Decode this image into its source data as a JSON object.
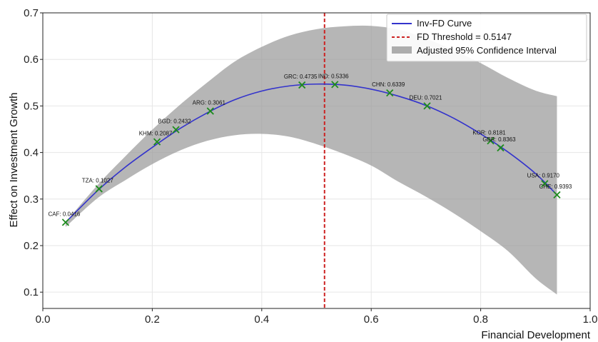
{
  "chart_data": {
    "type": "line",
    "xlabel": "Financial Development",
    "ylabel": "Effect on Investment Growth",
    "xlim": [
      0.0,
      1.0
    ],
    "ylim": [
      0.065,
      0.7
    ],
    "x_ticks": [
      0.0,
      0.2,
      0.4,
      0.6,
      0.8,
      1.0
    ],
    "x_tick_labels": [
      "0.0",
      "0.2",
      "0.4",
      "0.6",
      "0.8",
      "1.0"
    ],
    "y_ticks": [
      0.1,
      0.2,
      0.3,
      0.4,
      0.5,
      0.6,
      0.7
    ],
    "y_tick_labels": [
      "0.1",
      "0.2",
      "0.3",
      "0.4",
      "0.5",
      "0.6",
      "0.7"
    ],
    "grid": true,
    "legend_position": "top-right",
    "legend": {
      "curve": "Inv-FD Curve",
      "threshold": "FD Threshold = 0.5147",
      "ci": "Adjusted 95% Confidence Interval"
    },
    "threshold_x": 0.5147,
    "curve": {
      "x": [
        0.0416,
        0.1,
        0.15,
        0.2,
        0.25,
        0.3,
        0.35,
        0.4,
        0.45,
        0.5,
        0.55,
        0.6,
        0.65,
        0.7,
        0.75,
        0.8,
        0.85,
        0.9,
        0.9393
      ],
      "y": [
        0.25,
        0.318,
        0.368,
        0.411,
        0.451,
        0.485,
        0.513,
        0.532,
        0.543,
        0.547,
        0.545,
        0.536,
        0.521,
        0.501,
        0.474,
        0.44,
        0.401,
        0.355,
        0.309
      ]
    },
    "ci_band": {
      "x": [
        0.0416,
        0.1,
        0.15,
        0.2,
        0.25,
        0.3,
        0.35,
        0.4,
        0.45,
        0.5,
        0.55,
        0.6,
        0.65,
        0.7,
        0.75,
        0.8,
        0.85,
        0.9,
        0.9393
      ],
      "upper": [
        0.25,
        0.33,
        0.391,
        0.449,
        0.502,
        0.55,
        0.595,
        0.627,
        0.651,
        0.665,
        0.671,
        0.672,
        0.664,
        0.645,
        0.62,
        0.592,
        0.56,
        0.533,
        0.521
      ],
      "lower": [
        0.24,
        0.302,
        0.34,
        0.375,
        0.404,
        0.425,
        0.437,
        0.44,
        0.434,
        0.418,
        0.397,
        0.372,
        0.337,
        0.305,
        0.27,
        0.231,
        0.188,
        0.13,
        0.095
      ]
    },
    "points": [
      {
        "label": "CAF: 0.0416",
        "x": 0.0416,
        "y": 0.25
      },
      {
        "label": "TZA: 0.1027",
        "x": 0.1027,
        "y": 0.322
      },
      {
        "label": "KHM: 0.2087",
        "x": 0.2087,
        "y": 0.423
      },
      {
        "label": "BGD: 0.2432",
        "x": 0.2432,
        "y": 0.449
      },
      {
        "label": "ARG: 0.3061",
        "x": 0.3061,
        "y": 0.489
      },
      {
        "label": "GRC: 0.4735",
        "x": 0.4735,
        "y": 0.545
      },
      {
        "label": "IND: 0.5336",
        "x": 0.5336,
        "y": 0.546
      },
      {
        "label": "CHN: 0.6339",
        "x": 0.6339,
        "y": 0.528
      },
      {
        "label": "DEU: 0.7021",
        "x": 0.7021,
        "y": 0.5
      },
      {
        "label": "KOR: 0.8181",
        "x": 0.8181,
        "y": 0.425
      },
      {
        "label": "GBR: 0.8363",
        "x": 0.8363,
        "y": 0.41
      },
      {
        "label": "USA: 0.9170",
        "x": 0.917,
        "y": 0.333
      },
      {
        "label": "CHE: 0.9393",
        "x": 0.9393,
        "y": 0.309
      }
    ],
    "colors": {
      "curve": "#3333cc",
      "threshold": "#cc2222",
      "ci": "#9a9a9a",
      "markers": "#1e8c1e",
      "grid": "#e6e6e6"
    }
  }
}
